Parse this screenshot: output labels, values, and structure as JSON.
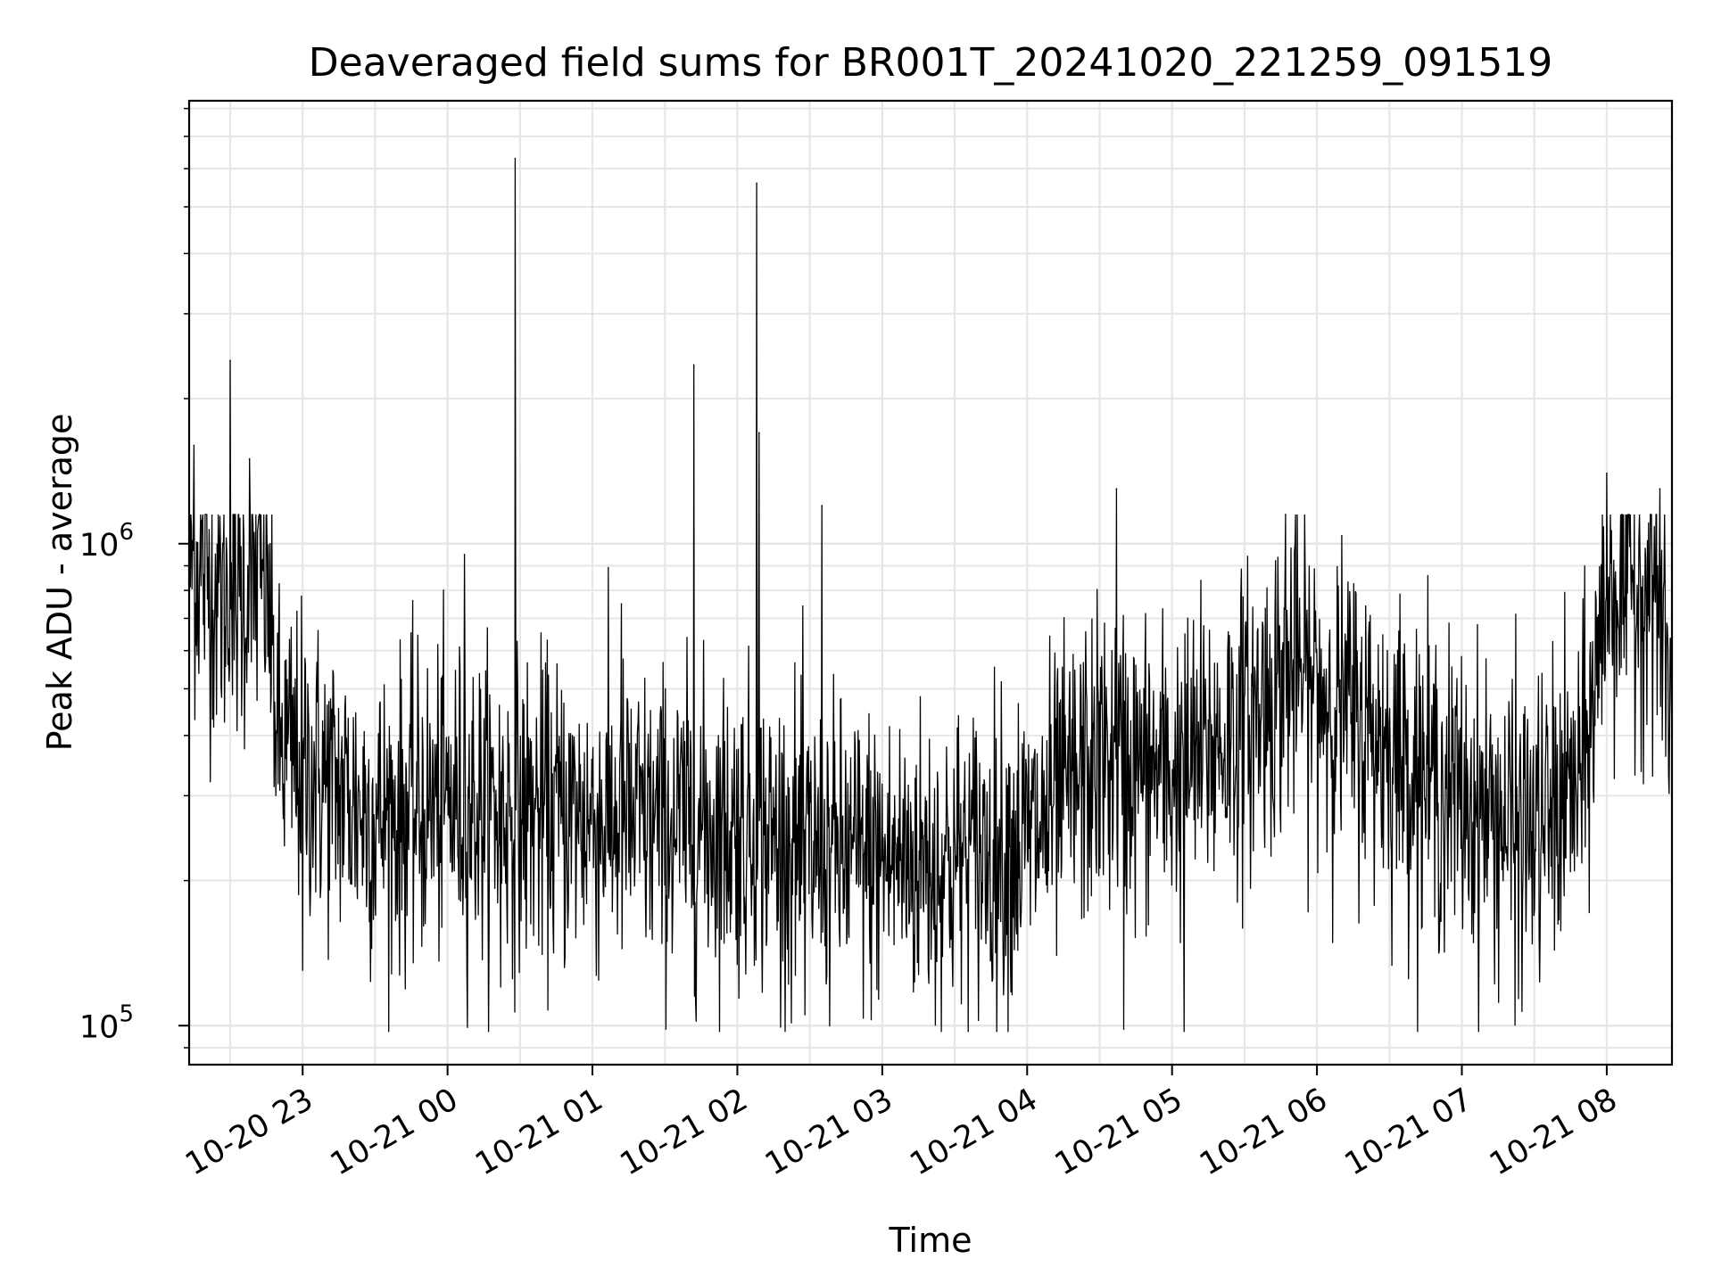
{
  "chart_data": {
    "type": "line",
    "title": "Deaveraged field sums for BR001T_20241020_221259_091519",
    "xlabel": "Time",
    "ylabel": "Peak ADU - average",
    "y_scale": "log",
    "ylim": [
      83000,
      8300000
    ],
    "xlim": [
      "2024-10-20 22:13",
      "2024-10-21 08:27"
    ],
    "grid": "major and minor, both axes",
    "line_color": "#000000",
    "x_ticks": [
      {
        "t": "2024-10-20 23:00",
        "label": "10-20 23"
      },
      {
        "t": "2024-10-21 00:00",
        "label": "10-21 00"
      },
      {
        "t": "2024-10-21 01:00",
        "label": "10-21 01"
      },
      {
        "t": "2024-10-21 02:00",
        "label": "10-21 02"
      },
      {
        "t": "2024-10-21 03:00",
        "label": "10-21 03"
      },
      {
        "t": "2024-10-21 04:00",
        "label": "10-21 04"
      },
      {
        "t": "2024-10-21 05:00",
        "label": "10-21 05"
      },
      {
        "t": "2024-10-21 06:00",
        "label": "10-21 06"
      },
      {
        "t": "2024-10-21 07:00",
        "label": "10-21 07"
      },
      {
        "t": "2024-10-21 08:00",
        "label": "10-21 08"
      }
    ],
    "y_ticks": [
      {
        "value": 100000,
        "base": "10",
        "exp": "5"
      },
      {
        "value": 1000000,
        "base": "10",
        "exp": "6"
      }
    ],
    "series": [
      {
        "baseline": [
          {
            "t": "2024-10-20 22:13",
            "y": 950000
          },
          {
            "t": "2024-10-20 22:30",
            "y": 750000
          },
          {
            "t": "2024-10-20 22:45",
            "y": 850000
          },
          {
            "t": "2024-10-20 22:50",
            "y": 380000
          },
          {
            "t": "2024-10-20 23:30",
            "y": 270000
          },
          {
            "t": "2024-10-21 00:00",
            "y": 290000
          },
          {
            "t": "2024-10-21 00:30",
            "y": 280000
          },
          {
            "t": "2024-10-21 01:00",
            "y": 270000
          },
          {
            "t": "2024-10-21 01:30",
            "y": 260000
          },
          {
            "t": "2024-10-21 02:00",
            "y": 260000
          },
          {
            "t": "2024-10-21 02:30",
            "y": 230000
          },
          {
            "t": "2024-10-21 03:00",
            "y": 220000
          },
          {
            "t": "2024-10-21 03:30",
            "y": 220000
          },
          {
            "t": "2024-10-21 04:00",
            "y": 240000
          },
          {
            "t": "2024-10-21 04:30",
            "y": 360000
          },
          {
            "t": "2024-10-21 05:00",
            "y": 330000
          },
          {
            "t": "2024-10-21 05:30",
            "y": 420000
          },
          {
            "t": "2024-10-21 05:50",
            "y": 550000
          },
          {
            "t": "2024-10-21 06:30",
            "y": 380000
          },
          {
            "t": "2024-10-21 07:00",
            "y": 290000
          },
          {
            "t": "2024-10-21 07:30",
            "y": 250000
          },
          {
            "t": "2024-10-21 07:50",
            "y": 320000
          },
          {
            "t": "2024-10-21 08:00",
            "y": 800000
          },
          {
            "t": "2024-10-21 08:20",
            "y": 850000
          },
          {
            "t": "2024-10-21 08:27",
            "y": 450000
          }
        ],
        "spikes": [
          {
            "t": "2024-10-20 22:15",
            "y": 1600000
          },
          {
            "t": "2024-10-20 22:30",
            "y": 2400000
          },
          {
            "t": "2024-10-20 22:38",
            "y": 1500000
          },
          {
            "t": "2024-10-21 00:07",
            "y": 950000
          },
          {
            "t": "2024-10-21 00:28",
            "y": 6300000
          },
          {
            "t": "2024-10-21 01:12",
            "y": 750000
          },
          {
            "t": "2024-10-21 01:42",
            "y": 2350000
          },
          {
            "t": "2024-10-21 02:08",
            "y": 5600000
          },
          {
            "t": "2024-10-21 02:09",
            "y": 1700000
          },
          {
            "t": "2024-10-21 02:35",
            "y": 1200000
          },
          {
            "t": "2024-10-21 04:37",
            "y": 1300000
          },
          {
            "t": "2024-10-21 05:47",
            "y": 1150000
          },
          {
            "t": "2024-10-21 08:00",
            "y": 1400000
          },
          {
            "t": "2024-10-21 08:22",
            "y": 1300000
          }
        ],
        "dips": [
          {
            "t": "2024-10-20 23:00",
            "y": 130000
          },
          {
            "t": "2024-10-21 00:22",
            "y": 120000
          },
          {
            "t": "2024-10-21 02:28",
            "y": 105000
          },
          {
            "t": "2024-10-21 03:22",
            "y": 100000
          },
          {
            "t": "2024-10-21 04:40",
            "y": 98000
          },
          {
            "t": "2024-10-21 05:05",
            "y": 97000
          },
          {
            "t": "2024-10-21 07:22",
            "y": 100000
          }
        ]
      }
    ]
  }
}
